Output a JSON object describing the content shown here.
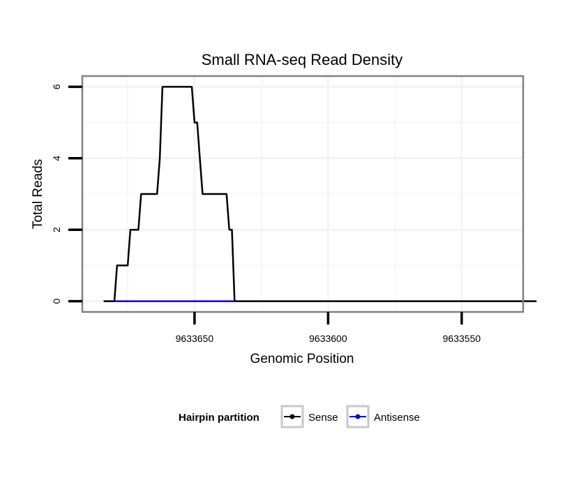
{
  "chart_data": {
    "type": "line",
    "title": "Small RNA-seq Read Density",
    "xlabel": "Genomic Position",
    "ylabel": "Total Reads",
    "x_reversed": true,
    "xlim": [
      9633692,
      9633527
    ],
    "ylim": [
      -0.3,
      6.3
    ],
    "x_ticks": [
      {
        "value": 9633650,
        "label": "9633650"
      },
      {
        "value": 9633600,
        "label": "9633600"
      },
      {
        "value": 9633550,
        "label": "9633550"
      }
    ],
    "y_ticks": [
      {
        "value": 0,
        "label": "0"
      },
      {
        "value": 2,
        "label": "2"
      },
      {
        "value": 4,
        "label": "4"
      },
      {
        "value": 6,
        "label": "6"
      }
    ],
    "grid": true,
    "legend": {
      "title": "Hairpin partition",
      "position": "bottom",
      "items": [
        {
          "label": "Sense",
          "color": "#000000"
        },
        {
          "label": "Antisense",
          "color": "#0000ff"
        }
      ]
    },
    "series": [
      {
        "name": "Sense",
        "color": "#000000",
        "points": [
          [
            9633684,
            0
          ],
          [
            9633680,
            0
          ],
          [
            9633679,
            1
          ],
          [
            9633675,
            1
          ],
          [
            9633674,
            2
          ],
          [
            9633671,
            2
          ],
          [
            9633670,
            3
          ],
          [
            9633664,
            3
          ],
          [
            9633663,
            4
          ],
          [
            9633662,
            6
          ],
          [
            9633651,
            6
          ],
          [
            9633650,
            5
          ],
          [
            9633649,
            5
          ],
          [
            9633648,
            4
          ],
          [
            9633647,
            3
          ],
          [
            9633638,
            3
          ],
          [
            9633637,
            2
          ],
          [
            9633636,
            2
          ],
          [
            9633635,
            0
          ],
          [
            9633634,
            0
          ],
          [
            9633522,
            0
          ]
        ]
      },
      {
        "name": "Antisense",
        "color": "#0000ff",
        "points": [
          [
            9633680,
            0
          ],
          [
            9633635,
            0
          ]
        ]
      }
    ]
  }
}
